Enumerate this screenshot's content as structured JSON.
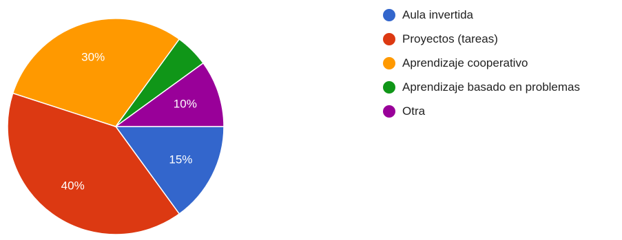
{
  "chart_data": {
    "type": "pie",
    "slices": [
      {
        "name": "Aula invertida",
        "value": 15,
        "label": "15%",
        "color": "#3366cc"
      },
      {
        "name": "Proyectos (tareas)",
        "value": 40,
        "label": "40%",
        "color": "#dc3912"
      },
      {
        "name": "Aprendizaje cooperativo",
        "value": 30,
        "label": "30%",
        "color": "#ff9900"
      },
      {
        "name": "Aprendizaje basado en problemas",
        "value": 5,
        "label": "",
        "color": "#109618"
      },
      {
        "name": "Otra",
        "value": 10,
        "label": "10%",
        "color": "#990099"
      }
    ],
    "legend_position": "right"
  }
}
